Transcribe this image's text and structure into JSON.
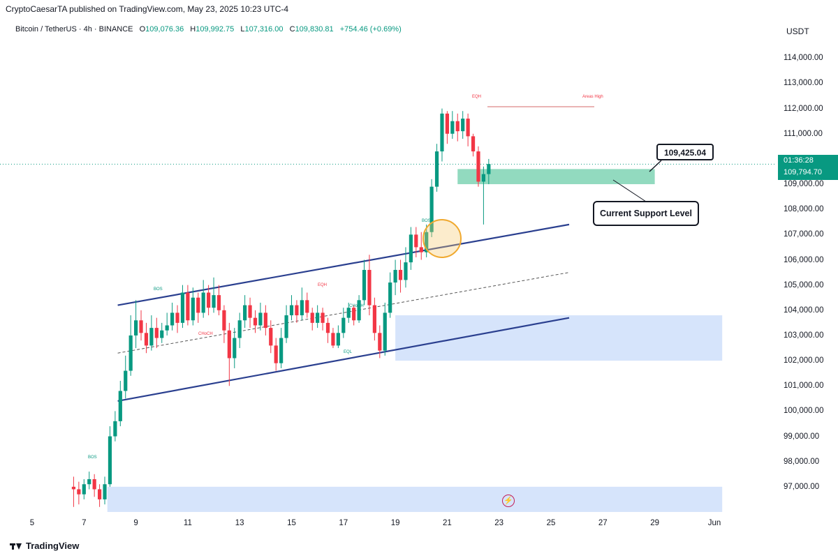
{
  "header": {
    "published": "CryptoCaesarTA published on TradingView.com, May 23, 2025 10:23 UTC-4",
    "symbol": "Bitcoin / TetherUS · 4h · BINANCE",
    "open_label": "O",
    "open": "109,076.36",
    "high_label": "H",
    "high": "109,992.75",
    "low_label": "L",
    "low": "107,316.00",
    "close_label": "C",
    "close": "109,830.81",
    "change": "+754.46 (+0.69%)"
  },
  "axis": {
    "currency": "USDT",
    "y_ticks": [
      "114,000.00",
      "113,000.00",
      "112,000.00",
      "111,000.00",
      "110,000.00",
      "109,000.00",
      "108,000.00",
      "107,000.00",
      "106,000.00",
      "105,000.00",
      "104,000.00",
      "103,000.00",
      "102,000.00",
      "101,000.00",
      "100,000.00",
      "99,000.00",
      "98,000.00",
      "97,000.00"
    ],
    "x_ticks": [
      "5",
      "7",
      "9",
      "11",
      "13",
      "15",
      "17",
      "19",
      "21",
      "23",
      "25",
      "27",
      "29",
      "Jun"
    ]
  },
  "price_tag": {
    "countdown": "01:36:28",
    "price": "109,794.70",
    "color": "#089981"
  },
  "annotations": {
    "callout_price": "109,425.04",
    "support_label": "Current Support Level",
    "eqh_top": "EQH",
    "ath": "Areas High",
    "bos_left": "BOS",
    "bos_mid": "BOS",
    "bos_right": "BOS",
    "choch_left": "CHoCH",
    "choch_mid": "CHoCH",
    "eqh_mid": "EQH",
    "eql": "EQL"
  },
  "logo": {
    "text": "TradingView"
  },
  "icons": {
    "event": "lightning-icon"
  },
  "colors": {
    "up": "#089981",
    "down": "#f23645",
    "channel": "#2a3f8f",
    "support_zone": "#7fd3b4",
    "demand_zone": "#d4e3fb"
  },
  "chart_data": {
    "type": "candlestick",
    "y_unit": "USDT",
    "ylim": [
      96000,
      114500
    ],
    "xlim": [
      5,
      31.6
    ],
    "x_unit": "day of May 2025",
    "candles": [
      [
        6.6,
        97000,
        96900,
        97400,
        96200
      ],
      [
        6.8,
        96900,
        96700,
        97200,
        96300
      ],
      [
        7.0,
        96700,
        97100,
        97300,
        96500
      ],
      [
        7.2,
        97100,
        97300,
        97600,
        96900
      ],
      [
        7.4,
        97300,
        96900,
        97500,
        96600
      ],
      [
        7.6,
        96900,
        96500,
        97100,
        96200
      ],
      [
        7.8,
        96500,
        97100,
        97400,
        96300
      ],
      [
        8.0,
        97100,
        99000,
        99400,
        97000
      ],
      [
        8.2,
        99000,
        99600,
        100000,
        98800
      ],
      [
        8.4,
        99600,
        100800,
        101200,
        99400
      ],
      [
        8.6,
        100800,
        101600,
        102200,
        100500
      ],
      [
        8.8,
        101600,
        103000,
        103800,
        101400
      ],
      [
        9.0,
        103000,
        103600,
        104400,
        102500
      ],
      [
        9.2,
        103600,
        103100,
        104000,
        102800
      ],
      [
        9.4,
        103100,
        102600,
        103500,
        102300
      ],
      [
        9.6,
        102600,
        103300,
        103800,
        102400
      ],
      [
        9.8,
        103300,
        102900,
        103700,
        102500
      ],
      [
        10.0,
        102900,
        103200,
        103500,
        102700
      ],
      [
        10.2,
        103200,
        103400,
        103900,
        103000
      ],
      [
        10.4,
        103400,
        103900,
        104300,
        103200
      ],
      [
        10.6,
        103900,
        103500,
        104200,
        103100
      ],
      [
        10.8,
        103500,
        104700,
        105000,
        103300
      ],
      [
        11.0,
        104700,
        103600,
        105000,
        103400
      ],
      [
        11.2,
        103600,
        104500,
        104900,
        103400
      ],
      [
        11.4,
        104500,
        103900,
        104700,
        103500
      ],
      [
        11.6,
        103900,
        104700,
        105200,
        103700
      ],
      [
        11.8,
        104700,
        104100,
        105000,
        103800
      ],
      [
        12.0,
        104100,
        104600,
        105300,
        103900
      ],
      [
        12.2,
        104600,
        104000,
        105000,
        103800
      ],
      [
        12.4,
        104000,
        103200,
        104200,
        102700
      ],
      [
        12.6,
        103200,
        102100,
        103500,
        101000
      ],
      [
        12.8,
        102100,
        102900,
        103300,
        101700
      ],
      [
        13.0,
        102900,
        103600,
        103900,
        102500
      ],
      [
        13.2,
        103600,
        104200,
        104600,
        103300
      ],
      [
        13.4,
        104200,
        103700,
        104500,
        103300
      ],
      [
        13.6,
        103700,
        103400,
        104000,
        103100
      ],
      [
        13.8,
        103400,
        103900,
        104300,
        103200
      ],
      [
        14.0,
        103900,
        103300,
        104200,
        103000
      ],
      [
        14.2,
        103300,
        102600,
        103600,
        102300
      ],
      [
        14.4,
        102600,
        101900,
        102900,
        101600
      ],
      [
        14.6,
        101900,
        102900,
        103300,
        101700
      ],
      [
        14.8,
        102900,
        103800,
        104200,
        102700
      ],
      [
        15.0,
        103800,
        104200,
        104600,
        103600
      ],
      [
        15.2,
        104200,
        103800,
        104400,
        103500
      ],
      [
        15.4,
        103800,
        104400,
        104900,
        103600
      ],
      [
        15.6,
        104400,
        103900,
        104700,
        103700
      ],
      [
        15.8,
        103900,
        103500,
        104100,
        103200
      ],
      [
        16.0,
        103500,
        103900,
        104200,
        103300
      ],
      [
        16.2,
        103900,
        103500,
        104100,
        103200
      ],
      [
        16.4,
        103500,
        103100,
        103700,
        102700
      ],
      [
        16.6,
        103100,
        102600,
        103300,
        102500
      ],
      [
        16.8,
        102600,
        103100,
        103400,
        102500
      ],
      [
        17.0,
        103100,
        103700,
        104100,
        102900
      ],
      [
        17.2,
        103700,
        104100,
        104300,
        103500
      ],
      [
        17.4,
        104100,
        103600,
        104200,
        103400
      ],
      [
        17.6,
        103600,
        104400,
        104600,
        103500
      ],
      [
        17.8,
        104400,
        105600,
        106000,
        104200
      ],
      [
        18.0,
        105600,
        104200,
        106200,
        103800
      ],
      [
        18.2,
        104200,
        103100,
        104500,
        102800
      ],
      [
        18.4,
        103100,
        102400,
        103400,
        102100
      ],
      [
        18.6,
        102400,
        103900,
        104300,
        102200
      ],
      [
        18.8,
        103900,
        105100,
        105500,
        103700
      ],
      [
        19.0,
        105100,
        105600,
        106000,
        104600
      ],
      [
        19.2,
        105600,
        105200,
        106000,
        104700
      ],
      [
        19.4,
        105200,
        105900,
        106500,
        104900
      ],
      [
        19.6,
        105900,
        107000,
        107300,
        105600
      ],
      [
        19.8,
        107000,
        106500,
        107300,
        106100
      ],
      [
        20.0,
        106500,
        106300,
        107100,
        106000
      ],
      [
        20.2,
        106300,
        107100,
        107400,
        106100
      ],
      [
        20.4,
        107100,
        108900,
        109200,
        106900
      ],
      [
        20.6,
        108900,
        110300,
        110600,
        108700
      ],
      [
        20.8,
        110300,
        111800,
        112000,
        109900
      ],
      [
        21.0,
        111800,
        111000,
        111900,
        110600
      ],
      [
        21.2,
        111000,
        111500,
        111900,
        110800
      ],
      [
        21.4,
        111500,
        111100,
        111800,
        110700
      ],
      [
        21.6,
        111100,
        111600,
        111900,
        110800
      ],
      [
        21.8,
        111600,
        110900,
        111800,
        110500
      ],
      [
        22.0,
        110900,
        110300,
        111000,
        110100
      ],
      [
        22.2,
        110300,
        109100,
        110500,
        108900
      ],
      [
        22.4,
        109100,
        109400,
        109700,
        107400
      ],
      [
        22.6,
        109400,
        109800,
        110000,
        109000
      ]
    ],
    "lines": [
      {
        "name": "channel-upper",
        "from": [
          8.3,
          104200
        ],
        "to": [
          25.7,
          107400
        ]
      },
      {
        "name": "channel-lower",
        "from": [
          8.3,
          100400
        ],
        "to": [
          25.7,
          103700
        ]
      },
      {
        "name": "channel-mid",
        "from": [
          8.3,
          102300
        ],
        "to": [
          25.7,
          105500
        ]
      }
    ],
    "zones": [
      {
        "name": "support-zone",
        "x": [
          21.4,
          29.0
        ],
        "y": [
          109000,
          109600
        ]
      },
      {
        "name": "demand-zone-upper",
        "x": [
          19.0,
          31.6
        ],
        "y": [
          102000,
          103800
        ]
      },
      {
        "name": "demand-zone-lower",
        "x": [
          7.9,
          31.6
        ],
        "y": [
          96000,
          97000
        ]
      }
    ],
    "last_price": 109794.7
  }
}
